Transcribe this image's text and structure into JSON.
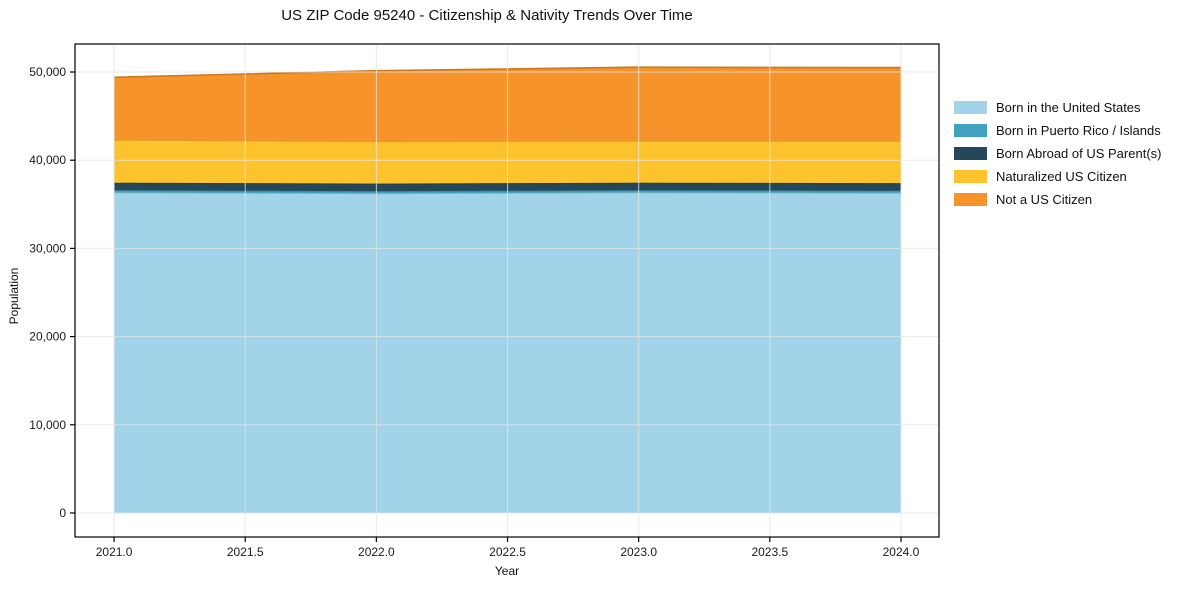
{
  "figure": {
    "background": "#ffffff"
  },
  "chart_data": {
    "type": "area",
    "stacked": true,
    "title": "US ZIP Code 95240 - Citizenship & Nativity Trends Over Time",
    "xlabel": "Year",
    "ylabel": "Population",
    "x": [
      2021,
      2022,
      2023,
      2024
    ],
    "series": [
      {
        "name": "Born in the United States",
        "color": "#a1d3e9",
        "values": [
          36350,
          36250,
          36350,
          36300
        ]
      },
      {
        "name": "Born in Puerto Rico / Islands",
        "color": "#40a1c0",
        "values": [
          250,
          250,
          250,
          250
        ]
      },
      {
        "name": "Born Abroad of US Parent(s)",
        "color": "#24485a",
        "values": [
          850,
          850,
          850,
          850
        ]
      },
      {
        "name": "Naturalized US Citizen",
        "color": "#fcc32d",
        "values": [
          4850,
          4800,
          4750,
          4800
        ]
      },
      {
        "name": "Not a US Citizen",
        "color": "#f6942b",
        "values": [
          7100,
          8000,
          8350,
          8300
        ]
      }
    ],
    "stack_totals": [
      49400,
      50150,
      50550,
      50500
    ],
    "x_tick_values": [
      2021.0,
      2021.5,
      2022.0,
      2022.5,
      2023.0,
      2023.5,
      2024.0
    ],
    "x_tick_labels": [
      "2021.0",
      "2021.5",
      "2022.0",
      "2022.5",
      "2023.0",
      "2023.5",
      "2024.0"
    ],
    "y_tick_values": [
      0,
      10000,
      20000,
      30000,
      40000,
      50000
    ],
    "y_tick_labels": [
      "0",
      "10,000",
      "20,000",
      "30,000",
      "40,000",
      "50,000"
    ],
    "xlim": [
      2020.851,
      2024.145
    ],
    "ylim": [
      -2721,
      53175
    ],
    "grid": true,
    "gridline_color": "rgba(229,229,229,0.8)",
    "axis_color": "#000000",
    "tick_text_color": "#1a1a1a",
    "legend_position": "right-outside"
  }
}
